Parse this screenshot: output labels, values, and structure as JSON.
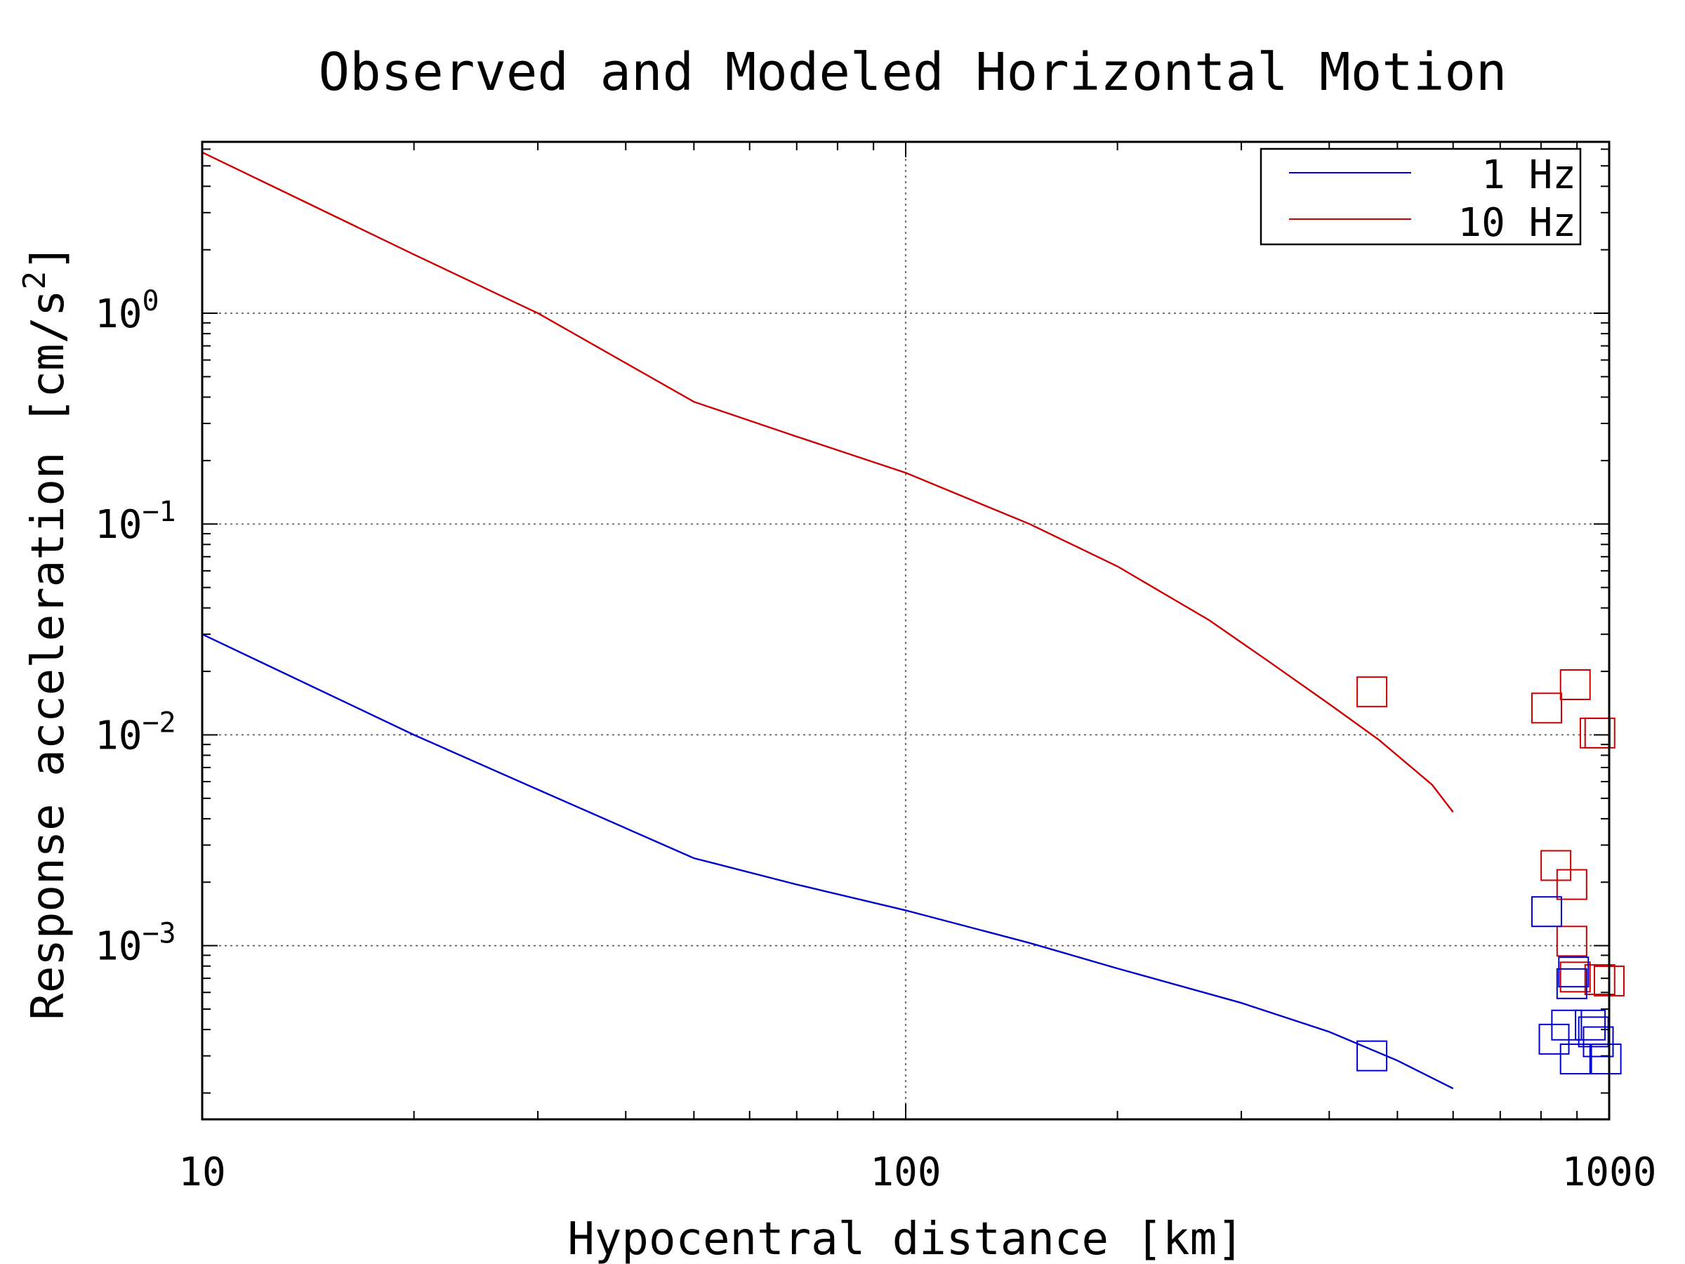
{
  "chart_data": {
    "type": "line",
    "title": "Observed and Modeled Horizontal Motion",
    "xlabel": "Hypocentral distance [km]",
    "ylabel_main": "Response acceleration [cm/s",
    "ylabel_sup": "2",
    "ylabel_close": "]",
    "x_scale": "log",
    "y_scale": "log",
    "xlim": [
      10,
      1000
    ],
    "ylim": [
      0.00015,
      6.5
    ],
    "grid": true,
    "legend_position": "top-right",
    "x_ticks": [
      {
        "value": 10,
        "label": "10"
      },
      {
        "value": 100,
        "label": "100"
      },
      {
        "value": 1000,
        "label": "1000"
      }
    ],
    "y_ticks": [
      {
        "value": 1,
        "base": "10",
        "exp": "0"
      },
      {
        "value": 0.1,
        "base": "10",
        "exp": "−1"
      },
      {
        "value": 0.01,
        "base": "10",
        "exp": "−2"
      },
      {
        "value": 0.001,
        "base": "10",
        "exp": "−3"
      }
    ],
    "series": [
      {
        "name": "1 Hz",
        "color": "#0000cc",
        "x": [
          10,
          20,
          30,
          50,
          70,
          100,
          150,
          200,
          300,
          400,
          500,
          600
        ],
        "y": [
          0.03,
          0.01,
          0.0055,
          0.0026,
          0.00195,
          0.00147,
          0.00103,
          0.00078,
          0.000535,
          0.00039,
          0.000285,
          0.00021
        ]
      },
      {
        "name": "10 Hz",
        "color": "#cc0000",
        "x": [
          10,
          20,
          30,
          50,
          70,
          100,
          150,
          200,
          270,
          330,
          400,
          470,
          560,
          600
        ],
        "y": [
          5.8,
          1.9,
          1.0,
          0.38,
          0.26,
          0.175,
          0.1,
          0.063,
          0.035,
          0.022,
          0.014,
          0.0095,
          0.0058,
          0.0043
        ]
      }
    ],
    "observed": [
      {
        "series": "10 Hz",
        "color": "#cc0000",
        "points": [
          [
            460,
            0.016
          ],
          [
            815,
            0.0134
          ],
          [
            895,
            0.0173
          ],
          [
            955,
            0.0102
          ],
          [
            970,
            0.0102
          ],
          [
            840,
            0.0024
          ],
          [
            885,
            0.00195
          ],
          [
            885,
            0.00105
          ],
          [
            895,
            0.00071
          ],
          [
            970,
            0.00069
          ],
          [
            1000,
            0.00068
          ]
        ]
      },
      {
        "series": "1 Hz",
        "color": "#0000cc",
        "points": [
          [
            460,
            0.0003
          ],
          [
            815,
            0.00145
          ],
          [
            885,
            0.00066
          ],
          [
            890,
            0.00075
          ],
          [
            835,
            0.00036
          ],
          [
            870,
            0.00042
          ],
          [
            895,
            0.00029
          ],
          [
            940,
            0.00042
          ],
          [
            950,
            0.00039
          ],
          [
            965,
            0.00035
          ],
          [
            990,
            0.00029
          ]
        ]
      }
    ]
  }
}
